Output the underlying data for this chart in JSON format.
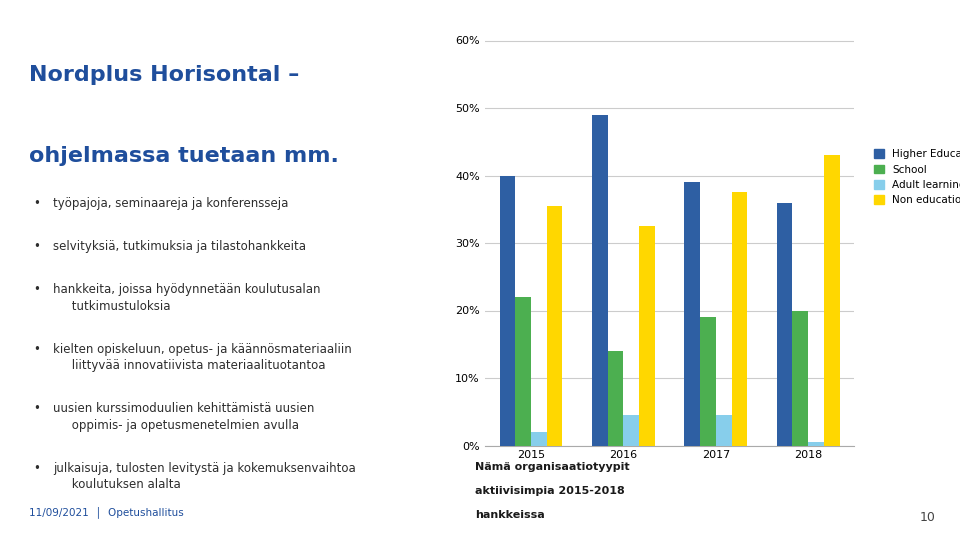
{
  "title_line1": "Nordplus Horisontal –",
  "title_line2": "ohjelmassa tuetaan mm.",
  "title_color": "#1F4E9C",
  "bullet_color": "#2d2d2d",
  "footer_text": "11/09/2021  │  Opetushallitus",
  "footer_color": "#1F4E9C",
  "page_number": "10",
  "categories": [
    "2015",
    "2016",
    "2017",
    "2018"
  ],
  "series": {
    "Higher Education": [
      0.4,
      0.49,
      0.39,
      0.36
    ],
    "School": [
      0.22,
      0.14,
      0.19,
      0.2
    ],
    "Adult learning": [
      0.02,
      0.045,
      0.045,
      0.005
    ],
    "Non education inst": [
      0.355,
      0.325,
      0.375,
      0.43
    ]
  },
  "colors": {
    "Higher Education": "#2E5FA3",
    "School": "#4CAF50",
    "Adult learning": "#87CEEB",
    "Non education inst": "#FFD700"
  },
  "ylim": [
    0,
    0.62
  ],
  "yticks": [
    0.0,
    0.1,
    0.2,
    0.3,
    0.4,
    0.5,
    0.6
  ],
  "ytick_labels": [
    "0%",
    "10%",
    "20%",
    "30%",
    "40%",
    "50%",
    "60%"
  ],
  "chart_caption_line1": "Nämä organisaatiotyypit",
  "chart_caption_line2": "aktiivisimpia 2015-2018",
  "chart_caption_line3": "hankkeissa",
  "background_color": "#ffffff",
  "grid_color": "#cccccc"
}
